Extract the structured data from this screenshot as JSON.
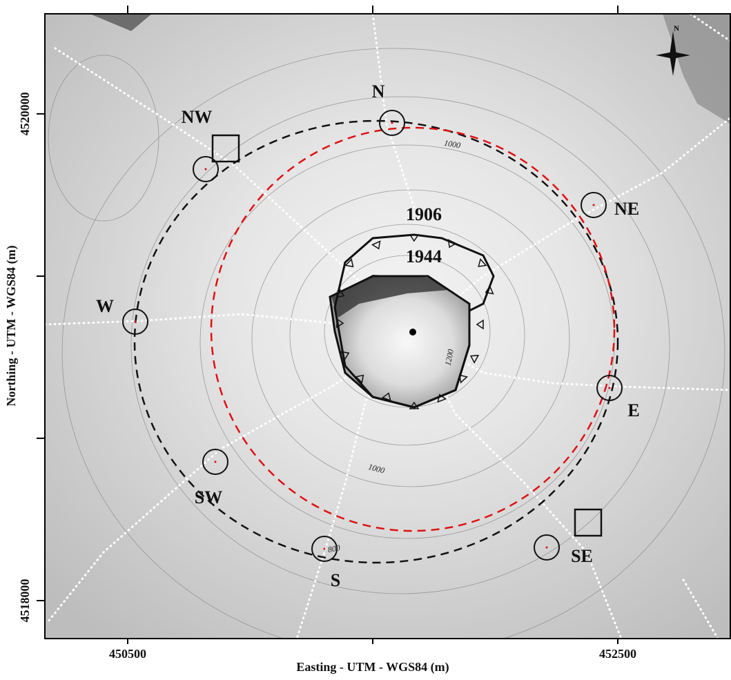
{
  "map": {
    "x_axis": {
      "label": "Easting - UTM - WGS84 (m)",
      "lim": [
        450162,
        452962
      ],
      "ticks": [
        450500,
        {
          "value": 451500,
          "label": null
        },
        452500
      ]
    },
    "y_axis": {
      "label": "Northing - UTM - WGS84 (m)",
      "lim": [
        4517844,
        4520411
      ],
      "ticks": [
        4520000,
        {
          "value": 4519333,
          "label": null
        },
        {
          "value": 4518667,
          "label": null
        },
        4518000
      ]
    },
    "stations": [
      "N",
      "NW",
      "NE",
      "W",
      "E",
      "SW",
      "S",
      "SE"
    ],
    "crater_rims": [
      "1906",
      "1944"
    ],
    "contour_labels": [
      "1000",
      "1200",
      "1000",
      "800"
    ],
    "north_arrow": "N"
  }
}
